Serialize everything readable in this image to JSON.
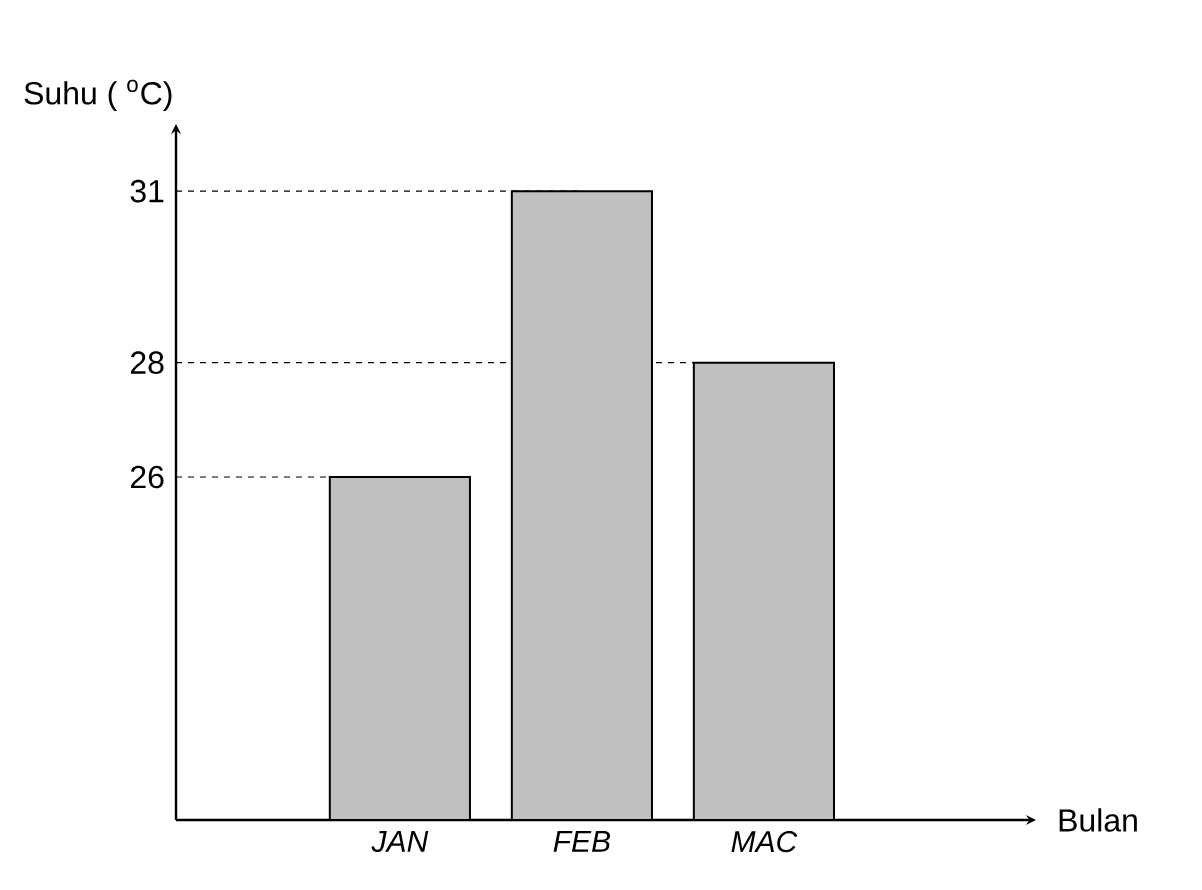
{
  "chart_data": {
    "type": "bar",
    "annotations": [
      "Bulan"
    ],
    "ylabel": "Suhu ( $^{o}$C)",
    "categories": [
      "JAN",
      "FEB",
      "MAC"
    ],
    "values": [
      26,
      31,
      28
    ],
    "color": "#c0c0c0",
    "ylim": [
      20,
      32
    ],
    "yticks": [
      26,
      28,
      31
    ],
    "ref_lines": [
      {
        "axis": "y",
        "value": 26,
        "line_style": "dashed"
      },
      {
        "axis": "y",
        "value": 28,
        "line_style": "dashed"
      },
      {
        "axis": "y",
        "value": 31,
        "line_style": "dashed"
      }
    ]
  }
}
